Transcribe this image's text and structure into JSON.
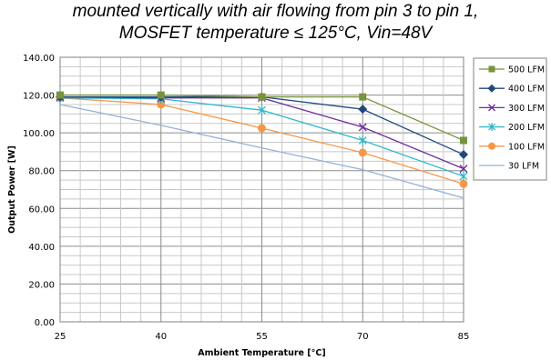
{
  "chart_data": {
    "type": "line",
    "title_line1": "mounted vertically with air flowing from pin 3 to pin 1,",
    "title_line2": "MOSFET temperature  ≤ 125°C, Vin=48V",
    "xlabel": "Ambient Temperature [°C]",
    "ylabel": "Output Power [W]",
    "x": [
      25,
      40,
      55,
      70,
      85
    ],
    "x_tick_labels": [
      "25",
      "40",
      "55",
      "70",
      "85"
    ],
    "ylim": [
      0,
      140
    ],
    "y_ticks": [
      0,
      20,
      40,
      60,
      80,
      100,
      120,
      140
    ],
    "y_tick_labels": [
      "0.00",
      "20.00",
      "40.00",
      "60.00",
      "80.00",
      "100.00",
      "120.00",
      "140.00"
    ],
    "grid": "on",
    "legend_position": "right",
    "series": [
      {
        "name": "500 LFM",
        "color": "#77933c",
        "marker": "square",
        "values": [
          120,
          120,
          119,
          119,
          96
        ]
      },
      {
        "name": "400 LFM",
        "color": "#1f497d",
        "marker": "diamond",
        "values": [
          119,
          119,
          119,
          112.5,
          88.5
        ]
      },
      {
        "name": "300 LFM",
        "color": "#7030a0",
        "marker": "x",
        "values": [
          119,
          118.5,
          118.5,
          103,
          81
        ]
      },
      {
        "name": "200 LFM",
        "color": "#31b8c8",
        "marker": "star",
        "values": [
          118.5,
          118,
          112,
          96,
          77
        ]
      },
      {
        "name": "100 LFM",
        "color": "#f79646",
        "marker": "circle",
        "values": [
          118.5,
          115,
          102.5,
          89.5,
          73
        ]
      },
      {
        "name": "30 LFM",
        "color": "#95b3d7",
        "marker": "none",
        "values": [
          115,
          104,
          92,
          80.5,
          65.5
        ]
      }
    ]
  }
}
